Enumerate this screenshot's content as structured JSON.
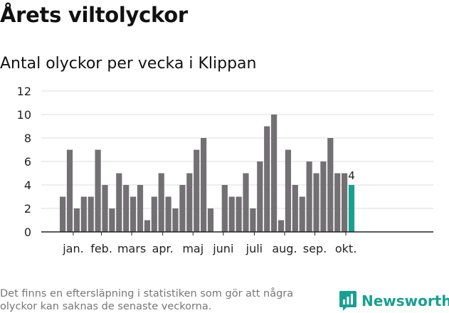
{
  "header": {
    "title": "Årets viltolyckor",
    "subtitle": "Antal olyckor per vecka i Klippan"
  },
  "footer": {
    "note": "Det finns en eftersläpning i statistiken som gör att några olyckor kan saknas de senaste veckorna.",
    "brand": "Newsworthy"
  },
  "colors": {
    "bar": "#737074",
    "highlight": "#17a092",
    "grid": "#dcdcdc",
    "axis": "#222222",
    "text": "#222222"
  },
  "chart_data": {
    "type": "bar",
    "title": "Antal olyckor per vecka i Klippan",
    "xlabel": "",
    "ylabel": "",
    "ylim": [
      0,
      12
    ],
    "yticks": [
      0,
      2,
      4,
      6,
      8,
      10,
      12
    ],
    "grid": true,
    "week_slots": 44,
    "values": [
      3,
      7,
      2,
      3,
      3,
      7,
      4,
      2,
      5,
      4,
      3,
      4,
      1,
      3,
      5,
      3,
      2,
      4,
      5,
      7,
      8,
      2,
      null,
      4,
      3,
      3,
      5,
      2,
      6,
      9,
      10,
      1,
      7,
      4,
      3,
      6,
      5,
      6,
      8,
      5,
      5,
      4
    ],
    "highlight": {
      "index": 41,
      "label": "4"
    },
    "month_labels": [
      {
        "label": "jan.",
        "week": 1.5
      },
      {
        "label": "feb.",
        "week": 5.5
      },
      {
        "label": "mars",
        "week": 9.8
      },
      {
        "label": "apr.",
        "week": 14.2
      },
      {
        "label": "maj",
        "week": 18.5
      },
      {
        "label": "juni",
        "week": 22.8
      },
      {
        "label": "juli",
        "week": 27.2
      },
      {
        "label": "aug.",
        "week": 31.5
      },
      {
        "label": "sep.",
        "week": 35.8
      },
      {
        "label": "okt.",
        "week": 40.2
      }
    ]
  }
}
